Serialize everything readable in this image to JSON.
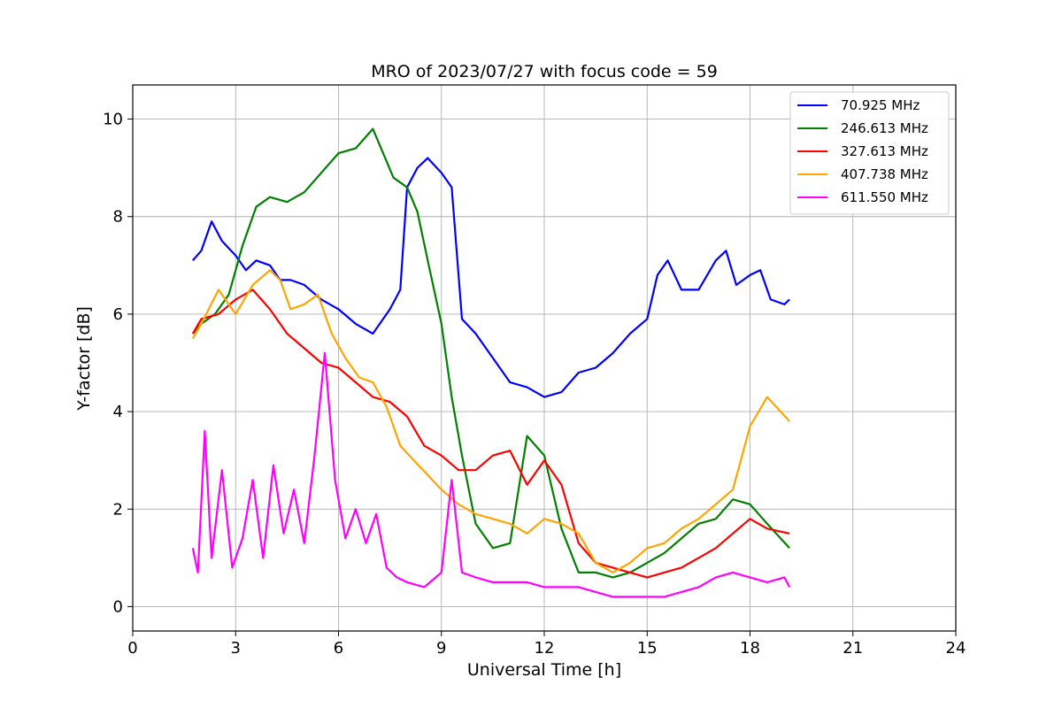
{
  "chart_data": {
    "type": "line",
    "title": "MRO of 2023/07/27 with focus code = 59",
    "xlabel": "Universal Time [h]",
    "ylabel": "Y-factor [dB]",
    "xlim": [
      0,
      24
    ],
    "ylim": [
      -0.5,
      10.7
    ],
    "xticks": [
      0,
      3,
      6,
      9,
      12,
      15,
      18,
      21,
      24
    ],
    "yticks": [
      0,
      2,
      4,
      6,
      8,
      10
    ],
    "grid": true,
    "legend_position": "top-right",
    "series": [
      {
        "name": " 70.925 MHz",
        "color": "#0000ff",
        "x": [
          1.75,
          2.0,
          2.3,
          2.6,
          3.0,
          3.3,
          3.6,
          4.0,
          4.3,
          4.6,
          5.0,
          5.5,
          6.0,
          6.5,
          7.0,
          7.5,
          7.8,
          8.0,
          8.3,
          8.6,
          9.0,
          9.3,
          9.6,
          10.0,
          10.5,
          11.0,
          11.5,
          12.0,
          12.5,
          13.0,
          13.5,
          14.0,
          14.5,
          15.0,
          15.3,
          15.6,
          16.0,
          16.5,
          17.0,
          17.3,
          17.6,
          18.0,
          18.3,
          18.6,
          19.0,
          19.15
        ],
        "y": [
          7.1,
          7.3,
          7.9,
          7.5,
          7.2,
          6.9,
          7.1,
          7.0,
          6.7,
          6.7,
          6.6,
          6.3,
          6.1,
          5.8,
          5.6,
          6.1,
          6.5,
          8.6,
          9.0,
          9.2,
          8.9,
          8.6,
          5.9,
          5.6,
          5.1,
          4.6,
          4.5,
          4.3,
          4.4,
          4.8,
          4.9,
          5.2,
          5.6,
          5.9,
          6.8,
          7.1,
          6.5,
          6.5,
          7.1,
          7.3,
          6.6,
          6.8,
          6.9,
          6.3,
          6.2,
          6.3
        ]
      },
      {
        "name": "246.613 MHz",
        "color": "#008000",
        "x": [
          1.75,
          2.0,
          2.4,
          2.8,
          3.2,
          3.6,
          4.0,
          4.5,
          5.0,
          5.5,
          6.0,
          6.5,
          7.0,
          7.3,
          7.6,
          8.0,
          8.3,
          8.6,
          9.0,
          9.3,
          9.6,
          10.0,
          10.5,
          11.0,
          11.5,
          12.0,
          12.5,
          13.0,
          13.5,
          14.0,
          14.5,
          15.0,
          15.5,
          16.0,
          16.5,
          17.0,
          17.5,
          18.0,
          18.5,
          19.15
        ],
        "y": [
          5.6,
          5.8,
          6.0,
          6.4,
          7.4,
          8.2,
          8.4,
          8.3,
          8.5,
          8.9,
          9.3,
          9.4,
          9.8,
          9.3,
          8.8,
          8.6,
          8.1,
          7.1,
          5.8,
          4.3,
          3.1,
          1.7,
          1.2,
          1.3,
          3.5,
          3.1,
          1.6,
          0.7,
          0.7,
          0.6,
          0.7,
          0.9,
          1.1,
          1.4,
          1.7,
          1.8,
          2.2,
          2.1,
          1.7,
          1.2
        ]
      },
      {
        "name": "327.613 MHz",
        "color": "#ff0000",
        "x": [
          1.75,
          2.0,
          2.5,
          3.0,
          3.5,
          4.0,
          4.5,
          5.0,
          5.5,
          6.0,
          6.5,
          7.0,
          7.5,
          8.0,
          8.5,
          9.0,
          9.5,
          10.0,
          10.5,
          11.0,
          11.5,
          12.0,
          12.5,
          13.0,
          13.5,
          14.0,
          14.5,
          15.0,
          15.5,
          16.0,
          16.5,
          17.0,
          17.5,
          18.0,
          18.5,
          19.15
        ],
        "y": [
          5.6,
          5.9,
          6.0,
          6.3,
          6.5,
          6.1,
          5.6,
          5.3,
          5.0,
          4.9,
          4.6,
          4.3,
          4.2,
          3.9,
          3.3,
          3.1,
          2.8,
          2.8,
          3.1,
          3.2,
          2.5,
          3.0,
          2.5,
          1.3,
          0.9,
          0.8,
          0.7,
          0.6,
          0.7,
          0.8,
          1.0,
          1.2,
          1.5,
          1.8,
          1.6,
          1.5
        ]
      },
      {
        "name": "407.738 MHz",
        "color": "#ffa500",
        "x": [
          1.75,
          2.0,
          2.5,
          3.0,
          3.5,
          4.0,
          4.3,
          4.6,
          5.0,
          5.4,
          5.8,
          6.2,
          6.6,
          7.0,
          7.4,
          7.8,
          8.2,
          8.6,
          9.0,
          9.5,
          10.0,
          10.5,
          11.0,
          11.5,
          12.0,
          12.5,
          13.0,
          13.5,
          14.0,
          14.5,
          15.0,
          15.5,
          16.0,
          16.5,
          17.0,
          17.5,
          18.0,
          18.5,
          19.15
        ],
        "y": [
          5.5,
          5.8,
          6.5,
          6.0,
          6.6,
          6.9,
          6.7,
          6.1,
          6.2,
          6.4,
          5.6,
          5.1,
          4.7,
          4.6,
          4.1,
          3.3,
          3.0,
          2.7,
          2.4,
          2.1,
          1.9,
          1.8,
          1.7,
          1.5,
          1.8,
          1.7,
          1.5,
          0.9,
          0.7,
          0.9,
          1.2,
          1.3,
          1.6,
          1.8,
          2.1,
          2.4,
          3.7,
          4.3,
          3.8
        ]
      },
      {
        "name": "611.550 MHz",
        "color": "#ff00ff",
        "x": [
          1.75,
          1.9,
          2.1,
          2.3,
          2.6,
          2.9,
          3.2,
          3.5,
          3.8,
          4.1,
          4.4,
          4.7,
          5.0,
          5.3,
          5.6,
          5.9,
          6.2,
          6.5,
          6.8,
          7.1,
          7.4,
          7.7,
          8.0,
          8.5,
          9.0,
          9.3,
          9.6,
          10.0,
          10.5,
          11.0,
          11.5,
          12.0,
          12.5,
          13.0,
          13.5,
          14.0,
          14.5,
          15.0,
          15.5,
          16.0,
          16.5,
          17.0,
          17.5,
          18.0,
          18.5,
          19.0,
          19.15
        ],
        "y": [
          1.2,
          0.7,
          3.6,
          1.0,
          2.8,
          0.8,
          1.4,
          2.6,
          1.0,
          2.9,
          1.5,
          2.4,
          1.3,
          3.1,
          5.2,
          2.6,
          1.4,
          2.0,
          1.3,
          1.9,
          0.8,
          0.6,
          0.5,
          0.4,
          0.7,
          2.6,
          0.7,
          0.6,
          0.5,
          0.5,
          0.5,
          0.4,
          0.4,
          0.4,
          0.3,
          0.2,
          0.2,
          0.2,
          0.2,
          0.3,
          0.4,
          0.6,
          0.7,
          0.6,
          0.5,
          0.6,
          0.4
        ]
      }
    ]
  }
}
